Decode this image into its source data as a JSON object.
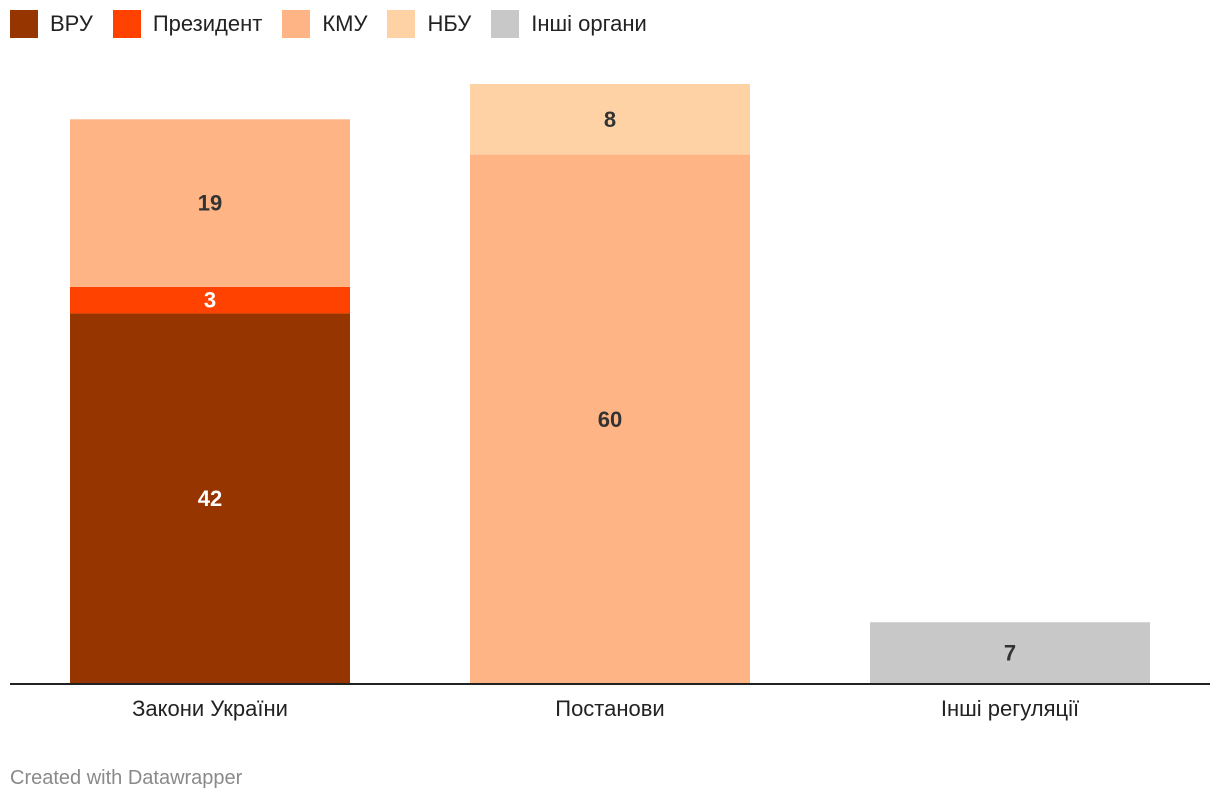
{
  "chart_data": {
    "type": "bar",
    "stacked": true,
    "categories": [
      "Закони України",
      "Постанови",
      "Інші регуляції"
    ],
    "series": [
      {
        "name": "ВРУ",
        "color": "#963500",
        "label_color": "#ffffff",
        "values": [
          42,
          0,
          0
        ]
      },
      {
        "name": "Президент",
        "color": "#ff4200",
        "label_color": "#ffffff",
        "values": [
          3,
          0,
          0
        ]
      },
      {
        "name": "КМУ",
        "color": "#ffb485",
        "label_color": "#333333",
        "values": [
          19,
          60,
          0
        ]
      },
      {
        "name": "НБУ",
        "color": "#ffd2a6",
        "label_color": "#333333",
        "values": [
          0,
          8,
          0
        ]
      },
      {
        "name": "Інші органи",
        "color": "#c8c8c8",
        "label_color": "#333333",
        "values": [
          0,
          0,
          7
        ]
      }
    ],
    "ylim": [
      0,
      68
    ],
    "grid": false,
    "legend_position": "top-left"
  },
  "credit": "Created with Datawrapper"
}
